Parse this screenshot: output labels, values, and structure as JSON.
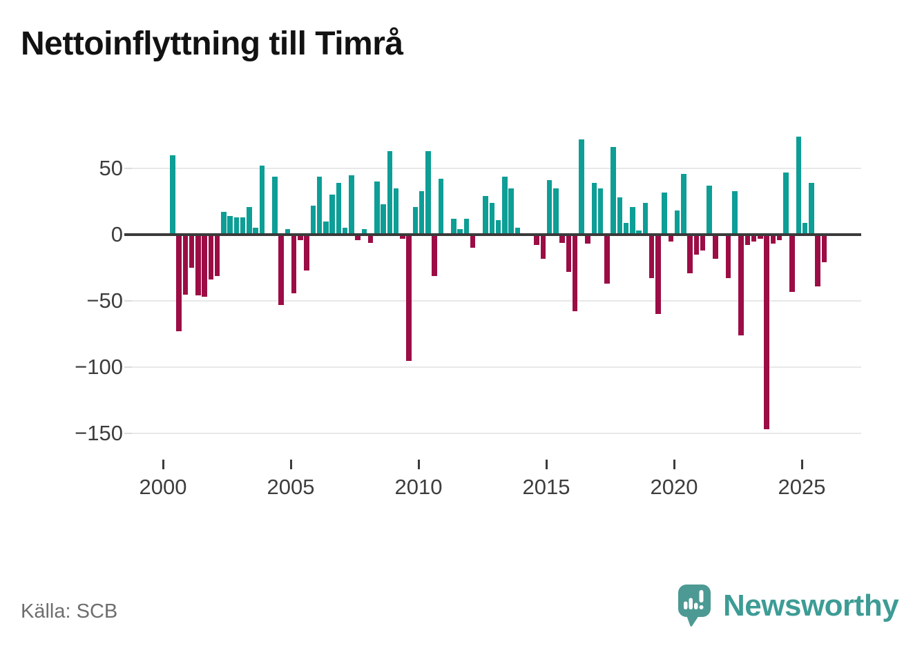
{
  "title": "Nettoinflyttning till Timrå",
  "source_label": "Källa: SCB",
  "logo": {
    "text": "Newsworthy",
    "icon": "speech-bubble-bar-chart-icon",
    "color": "#3d9c95"
  },
  "chart_data": {
    "type": "bar",
    "title": "Nettoinflyttning till Timrå",
    "xlabel": "",
    "ylabel": "",
    "x_tick_labels": [
      "2000",
      "2005",
      "2010",
      "2015",
      "2020",
      "2025"
    ],
    "x_tick_years": [
      2000,
      2005,
      2010,
      2015,
      2020,
      2025
    ],
    "y_tick_labels": [
      "50",
      "0",
      "−50",
      "−100",
      "−150"
    ],
    "y_tick_values": [
      50,
      0,
      -50,
      -100,
      -150
    ],
    "ylim": [
      -160,
      85
    ],
    "grid": "horizontal",
    "legend": "none",
    "bar_color_positive": "#0d9e96",
    "bar_color_negative": "#9c0d45",
    "zero_line_color": "#3a3a3a",
    "frequency": "quarterly",
    "first_quarter": "2000 Q2",
    "last_quarter": "2025 Q4",
    "series": [
      {
        "year": 2000,
        "quarters": [
          null,
          60,
          -73,
          -45
        ]
      },
      {
        "year": 2001,
        "quarters": [
          -25,
          -46,
          -47,
          -34
        ]
      },
      {
        "year": 2002,
        "quarters": [
          -31,
          17,
          14,
          13
        ]
      },
      {
        "year": 2003,
        "quarters": [
          13,
          21,
          5,
          52
        ]
      },
      {
        "year": 2004,
        "quarters": [
          0,
          44,
          -53,
          4
        ]
      },
      {
        "year": 2005,
        "quarters": [
          -44,
          -4,
          -27,
          22
        ]
      },
      {
        "year": 2006,
        "quarters": [
          44,
          10,
          30,
          39
        ]
      },
      {
        "year": 2007,
        "quarters": [
          5,
          45,
          -4,
          4
        ]
      },
      {
        "year": 2008,
        "quarters": [
          -6,
          40,
          23,
          63
        ]
      },
      {
        "year": 2009,
        "quarters": [
          35,
          -3,
          -95,
          21
        ]
      },
      {
        "year": 2010,
        "quarters": [
          33,
          63,
          -31,
          42
        ]
      },
      {
        "year": 2011,
        "quarters": [
          0,
          12,
          4,
          12
        ]
      },
      {
        "year": 2012,
        "quarters": [
          -10,
          0,
          29,
          24
        ]
      },
      {
        "year": 2013,
        "quarters": [
          11,
          44,
          35,
          5
        ]
      },
      {
        "year": 2014,
        "quarters": [
          0,
          0,
          -8,
          -18
        ]
      },
      {
        "year": 2015,
        "quarters": [
          41,
          35,
          -6,
          -28
        ]
      },
      {
        "year": 2016,
        "quarters": [
          -58,
          72,
          -7,
          39
        ]
      },
      {
        "year": 2017,
        "quarters": [
          35,
          -37,
          66,
          28
        ]
      },
      {
        "year": 2018,
        "quarters": [
          9,
          21,
          3,
          24
        ]
      },
      {
        "year": 2019,
        "quarters": [
          -33,
          -60,
          32,
          -5
        ]
      },
      {
        "year": 2020,
        "quarters": [
          18,
          46,
          -29,
          -15
        ]
      },
      {
        "year": 2021,
        "quarters": [
          -12,
          37,
          -18,
          0
        ]
      },
      {
        "year": 2022,
        "quarters": [
          -33,
          33,
          -76,
          -8
        ]
      },
      {
        "year": 2023,
        "quarters": [
          -5,
          -3,
          -147,
          -7
        ]
      },
      {
        "year": 2024,
        "quarters": [
          -4,
          47,
          -43,
          74
        ]
      },
      {
        "year": 2025,
        "quarters": [
          9,
          39,
          -39,
          -21
        ]
      }
    ]
  }
}
